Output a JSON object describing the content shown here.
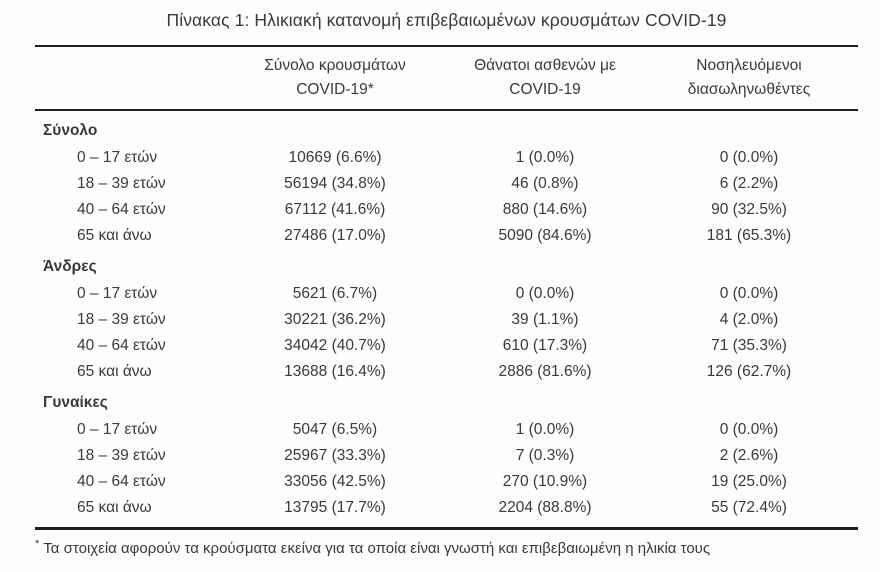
{
  "title": "Πίνακας 1: Ηλικιακή κατανομή επιβεβαιωμένων κρουσμάτων COVID-19",
  "table": {
    "columns": [
      {
        "line1": "Σύνολο κρουσμάτων",
        "line2": "COVID-19*"
      },
      {
        "line1": "Θάνατοι ασθενών με",
        "line2": "COVID-19"
      },
      {
        "line1": "Νοσηλευόμενοι",
        "line2": "διασωληνωθέντες"
      }
    ],
    "sections": [
      {
        "label": "Σύνολο",
        "rows": [
          {
            "label": "0 – 17 ετών",
            "cases": "10669 (6.6%)",
            "deaths": "1 (0.0%)",
            "intubated": "0 (0.0%)"
          },
          {
            "label": "18 – 39 ετών",
            "cases": "56194 (34.8%)",
            "deaths": "46 (0.8%)",
            "intubated": "6 (2.2%)"
          },
          {
            "label": "40 – 64 ετών",
            "cases": "67112 (41.6%)",
            "deaths": "880 (14.6%)",
            "intubated": "90 (32.5%)"
          },
          {
            "label": "65 και άνω",
            "cases": "27486 (17.0%)",
            "deaths": "5090 (84.6%)",
            "intubated": "181 (65.3%)"
          }
        ]
      },
      {
        "label": "Άνδρες",
        "rows": [
          {
            "label": "0 – 17 ετών",
            "cases": "5621 (6.7%)",
            "deaths": "0 (0.0%)",
            "intubated": "0 (0.0%)"
          },
          {
            "label": "18 – 39 ετών",
            "cases": "30221 (36.2%)",
            "deaths": "39 (1.1%)",
            "intubated": "4 (2.0%)"
          },
          {
            "label": "40 – 64 ετών",
            "cases": "34042 (40.7%)",
            "deaths": "610 (17.3%)",
            "intubated": "71 (35.3%)"
          },
          {
            "label": "65 και άνω",
            "cases": "13688 (16.4%)",
            "deaths": "2886 (81.6%)",
            "intubated": "126 (62.7%)"
          }
        ]
      },
      {
        "label": "Γυναίκες",
        "rows": [
          {
            "label": "0 – 17 ετών",
            "cases": "5047 (6.5%)",
            "deaths": "1 (0.0%)",
            "intubated": "0 (0.0%)"
          },
          {
            "label": "18 – 39 ετών",
            "cases": "25967 (33.3%)",
            "deaths": "7 (0.3%)",
            "intubated": "2 (2.6%)"
          },
          {
            "label": "40 – 64 ετών",
            "cases": "33056 (42.5%)",
            "deaths": "270 (10.9%)",
            "intubated": "19 (25.0%)"
          },
          {
            "label": "65 και άνω",
            "cases": "13795 (17.7%)",
            "deaths": "2204 (88.8%)",
            "intubated": "55 (72.4%)"
          }
        ]
      }
    ]
  },
  "footnote": {
    "marker": "*",
    "text": "Τα στοιχεία αφορούν τα κρούσματα εκείνα για τα οποία είναι γνωστή και επιβεβαιωμένη η ηλικία τους"
  },
  "colors": {
    "text": "#3a3a3a",
    "rule": "#1f1f1f",
    "background": "#fdfdfd"
  }
}
